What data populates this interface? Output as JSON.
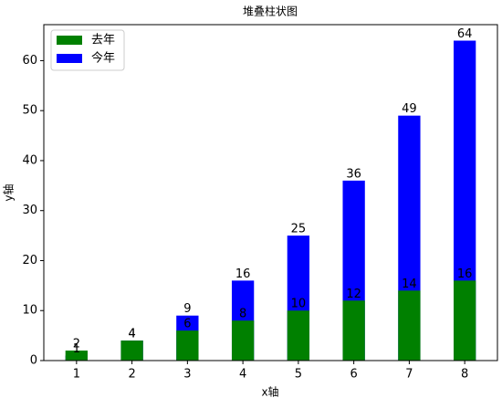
{
  "chart_data": {
    "type": "bar",
    "title": "堆叠柱状图",
    "x_label": "x轴",
    "y_label": "y轴",
    "x": [
      1,
      2,
      3,
      4,
      5,
      6,
      7,
      8
    ],
    "series": [
      {
        "name": "去年",
        "color": "#008000",
        "values": [
          2,
          4,
          6,
          8,
          10,
          12,
          14,
          16
        ]
      },
      {
        "name": "今年",
        "color": "#0000ff",
        "values": [
          1,
          4,
          9,
          16,
          25,
          36,
          49,
          64
        ]
      }
    ],
    "bar_width": 0.4,
    "xlim": [
      0.41,
      8.59
    ],
    "xticks": [
      1,
      2,
      3,
      4,
      5,
      6,
      7,
      8
    ],
    "ylim": [
      0,
      67.2
    ],
    "yticks": [
      0,
      10,
      20,
      30,
      40,
      50,
      60
    ],
    "legend": "upper left"
  }
}
